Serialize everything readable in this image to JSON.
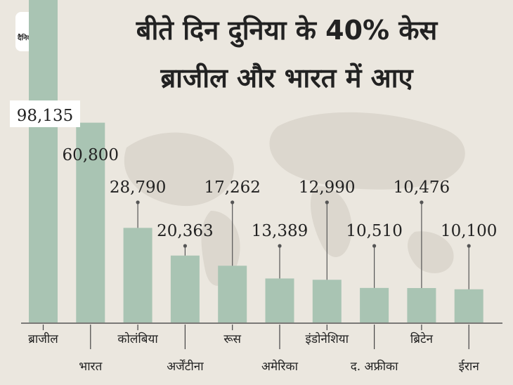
{
  "brand": {
    "logo_text": "दैनिक भास्कर",
    "accent": "#f5a623"
  },
  "header": {
    "title_line1": "बीते दिन दुनिया के 40% केस",
    "title_line2": "ब्राजील और भारत में आए"
  },
  "colors": {
    "background": "#ebe7df",
    "bar": "#a9c4b3",
    "map": "#dcd7ce",
    "text": "#222222",
    "label_bg": "#ffffff"
  },
  "chart_data": {
    "type": "bar",
    "title": "बीते दिन दुनिया के 40% केस ब्राजील और भारत में आए",
    "categories": [
      "ब्राजील",
      "भारत",
      "कोलंबिया",
      "अर्जेंटीना",
      "रूस",
      "अमेरिका",
      "इंडोनेशिया",
      "द. अफ्रीका",
      "ब्रिटेन",
      "ईरान"
    ],
    "values": [
      98135,
      60800,
      28790,
      20363,
      17262,
      13389,
      12990,
      10510,
      10476,
      10100
    ],
    "value_labels": [
      "98,135",
      "60,800",
      "28,790",
      "20,363",
      "17,262",
      "13,389",
      "12,990",
      "10,510",
      "10,476",
      "10,100"
    ],
    "grid": false,
    "legend": "none"
  }
}
